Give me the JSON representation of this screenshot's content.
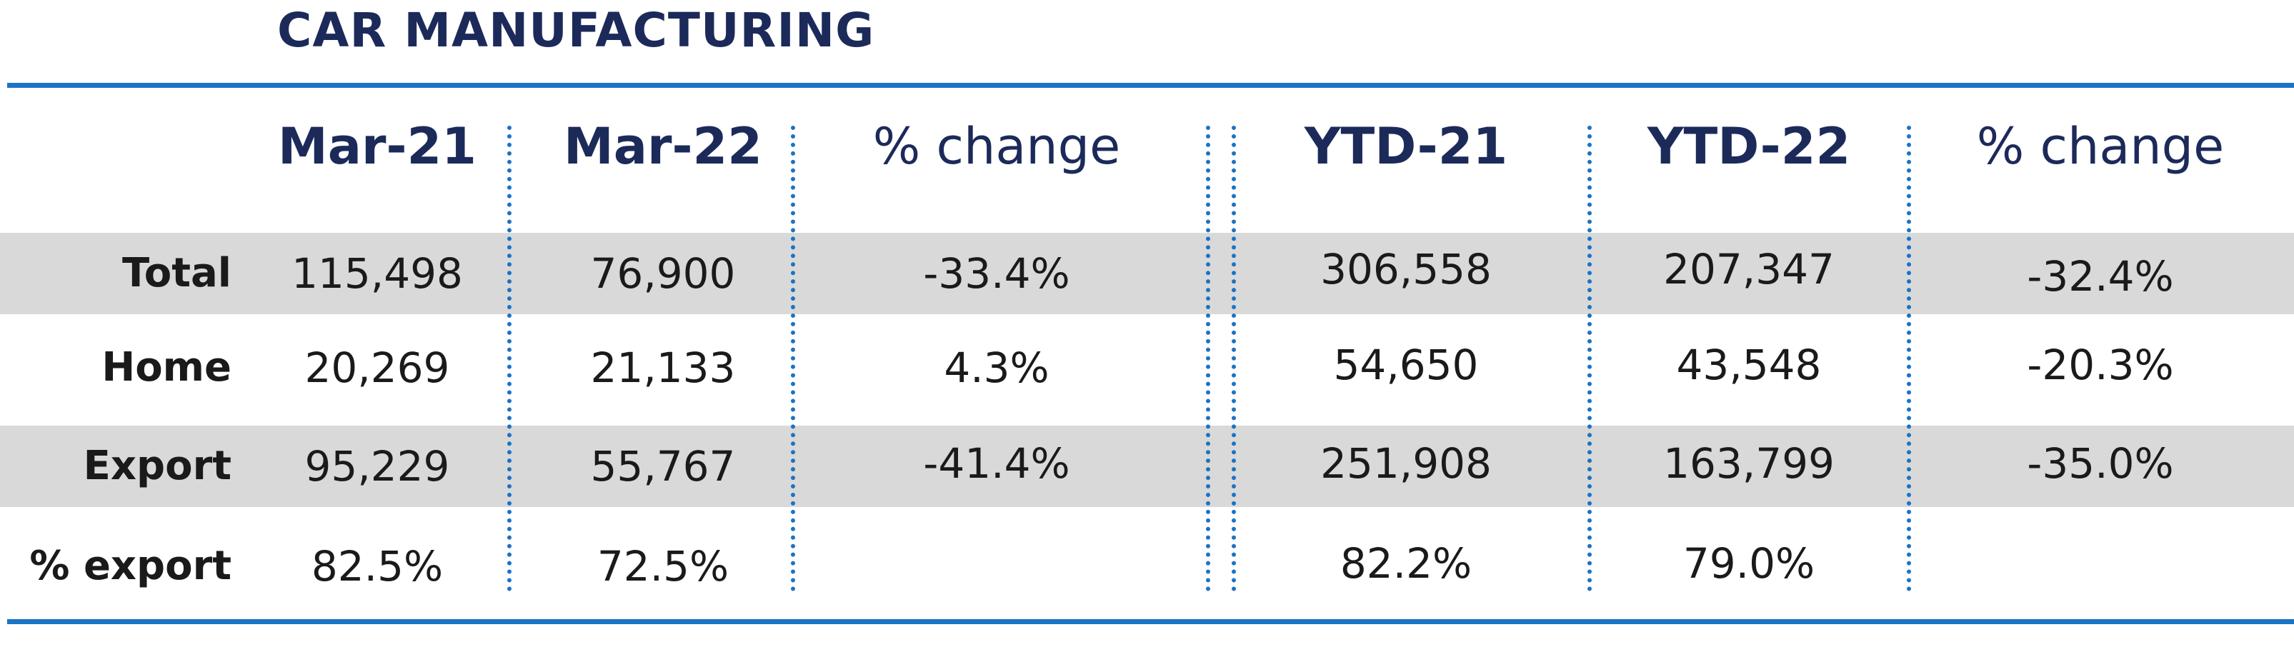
{
  "title": "CAR MANUFACTURING",
  "columns": [
    "Mar-21",
    "Mar-22",
    "% change",
    "YTD-21",
    "YTD-22",
    "% change"
  ],
  "rows": [
    {
      "label": "Total",
      "values": [
        "115,498",
        "76,900",
        "-33.4%",
        "306,558",
        "207,347",
        "-32.4%"
      ]
    },
    {
      "label": "Home",
      "values": [
        "20,269",
        "21,133",
        "4.3%",
        "54,650",
        "43,548",
        "-20.3%"
      ]
    },
    {
      "label": "Export",
      "values": [
        "95,229",
        "55,767",
        "-41.4%",
        "251,908",
        "163,799",
        "-35.0%"
      ]
    },
    {
      "label": "% export",
      "values": [
        "82.5%",
        "72.5%",
        "",
        "82.2%",
        "79.0%",
        ""
      ]
    }
  ],
  "colors": {
    "title": "#1c2a5a",
    "accent_rule": "#1a73c4",
    "row_band": "#d9d9d9"
  }
}
